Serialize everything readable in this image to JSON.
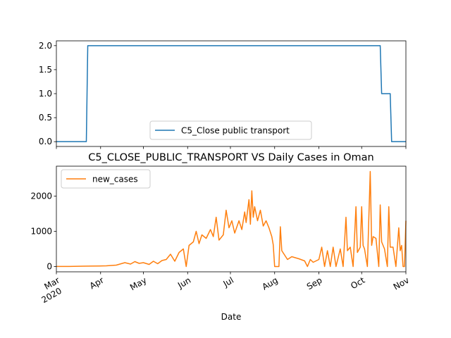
{
  "chart_data": [
    {
      "type": "line",
      "x_type": "date",
      "series": [
        {
          "name": "C5_Close public transport",
          "color": "#1f77b4",
          "points": [
            [
              "2020-03-01",
              0
            ],
            [
              "2020-03-22",
              0
            ],
            [
              "2020-03-23",
              2
            ],
            [
              "2020-10-14",
              2
            ],
            [
              "2020-10-15",
              1
            ],
            [
              "2020-10-21",
              1
            ],
            [
              "2020-10-22",
              0
            ],
            [
              "2020-11-01",
              0
            ]
          ]
        }
      ],
      "ylim": [
        -0.1,
        2.1
      ],
      "yticks": [
        "0.0",
        "0.5",
        "1.0",
        "1.5",
        "2.0"
      ],
      "legend": "bottom-center",
      "grid": false
    },
    {
      "type": "line",
      "x_type": "date",
      "title": "C5_CLOSE_PUBLIC_TRANSPORT VS Daily Cases in Oman",
      "xlabel": "Date",
      "series": [
        {
          "name": "new_cases",
          "color": "#ff7f0e",
          "points": [
            [
              "2020-03-01",
              2
            ],
            [
              "2020-03-10",
              3
            ],
            [
              "2020-03-20",
              10
            ],
            [
              "2020-03-31",
              15
            ],
            [
              "2020-04-05",
              20
            ],
            [
              "2020-04-12",
              40
            ],
            [
              "2020-04-18",
              110
            ],
            [
              "2020-04-22",
              70
            ],
            [
              "2020-04-25",
              140
            ],
            [
              "2020-04-28",
              90
            ],
            [
              "2020-05-01",
              110
            ],
            [
              "2020-05-05",
              60
            ],
            [
              "2020-05-08",
              150
            ],
            [
              "2020-05-11",
              80
            ],
            [
              "2020-05-14",
              170
            ],
            [
              "2020-05-17",
              200
            ],
            [
              "2020-05-20",
              350
            ],
            [
              "2020-05-23",
              150
            ],
            [
              "2020-05-26",
              400
            ],
            [
              "2020-05-29",
              500
            ],
            [
              "2020-05-31",
              0
            ],
            [
              "2020-06-02",
              600
            ],
            [
              "2020-06-05",
              700
            ],
            [
              "2020-06-07",
              1000
            ],
            [
              "2020-06-09",
              650
            ],
            [
              "2020-06-11",
              900
            ],
            [
              "2020-06-14",
              800
            ],
            [
              "2020-06-17",
              1050
            ],
            [
              "2020-06-19",
              850
            ],
            [
              "2020-06-21",
              1400
            ],
            [
              "2020-06-23",
              750
            ],
            [
              "2020-06-26",
              900
            ],
            [
              "2020-06-28",
              1600
            ],
            [
              "2020-06-30",
              1100
            ],
            [
              "2020-07-02",
              1300
            ],
            [
              "2020-07-04",
              950
            ],
            [
              "2020-07-07",
              1300
            ],
            [
              "2020-07-09",
              1050
            ],
            [
              "2020-07-11",
              1550
            ],
            [
              "2020-07-12",
              1250
            ],
            [
              "2020-07-14",
              1900
            ],
            [
              "2020-07-15",
              1200
            ],
            [
              "2020-07-16",
              2150
            ],
            [
              "2020-07-17",
              1400
            ],
            [
              "2020-07-18",
              1700
            ],
            [
              "2020-07-20",
              1300
            ],
            [
              "2020-07-22",
              1600
            ],
            [
              "2020-07-24",
              1150
            ],
            [
              "2020-07-26",
              1300
            ],
            [
              "2020-07-28",
              1100
            ],
            [
              "2020-07-30",
              850
            ],
            [
              "2020-07-31",
              620
            ],
            [
              "2020-08-01",
              0
            ],
            [
              "2020-08-04",
              0
            ],
            [
              "2020-08-05",
              1130
            ],
            [
              "2020-08-06",
              450
            ],
            [
              "2020-08-10",
              200
            ],
            [
              "2020-08-13",
              280
            ],
            [
              "2020-08-18",
              220
            ],
            [
              "2020-08-22",
              160
            ],
            [
              "2020-08-24",
              0
            ],
            [
              "2020-08-26",
              200
            ],
            [
              "2020-08-28",
              120
            ],
            [
              "2020-09-01",
              200
            ],
            [
              "2020-09-03",
              550
            ],
            [
              "2020-09-05",
              0
            ],
            [
              "2020-09-07",
              450
            ],
            [
              "2020-09-09",
              0
            ],
            [
              "2020-09-11",
              550
            ],
            [
              "2020-09-13",
              0
            ],
            [
              "2020-09-16",
              500
            ],
            [
              "2020-09-18",
              0
            ],
            [
              "2020-09-20",
              1400
            ],
            [
              "2020-09-21",
              450
            ],
            [
              "2020-09-23",
              550
            ],
            [
              "2020-09-25",
              0
            ],
            [
              "2020-09-27",
              1700
            ],
            [
              "2020-09-28",
              400
            ],
            [
              "2020-09-30",
              550
            ],
            [
              "2020-10-01",
              1700
            ],
            [
              "2020-10-02",
              600
            ],
            [
              "2020-10-03",
              500
            ],
            [
              "2020-10-05",
              0
            ],
            [
              "2020-10-07",
              2700
            ],
            [
              "2020-10-08",
              600
            ],
            [
              "2020-10-09",
              850
            ],
            [
              "2020-10-11",
              800
            ],
            [
              "2020-10-13",
              0
            ],
            [
              "2020-10-14",
              1750
            ],
            [
              "2020-10-15",
              700
            ],
            [
              "2020-10-17",
              500
            ],
            [
              "2020-10-19",
              0
            ],
            [
              "2020-10-20",
              1700
            ],
            [
              "2020-10-21",
              550
            ],
            [
              "2020-10-23",
              550
            ],
            [
              "2020-10-25",
              0
            ],
            [
              "2020-10-27",
              1100
            ],
            [
              "2020-10-28",
              450
            ],
            [
              "2020-10-29",
              600
            ],
            [
              "2020-10-30",
              0
            ],
            [
              "2020-10-31",
              0
            ],
            [
              "2020-11-01",
              1300
            ]
          ]
        }
      ],
      "ylim": [
        -150,
        2850
      ],
      "yticks": [
        "0",
        "1000",
        "2000"
      ],
      "legend": "top-left",
      "grid": false
    }
  ],
  "x_axis": {
    "start": "2020-03-01",
    "end": "2020-11-01",
    "ticks": [
      {
        "date": "2020-03-01",
        "label": "Mar",
        "sublabel": "2020"
      },
      {
        "date": "2020-04-01",
        "label": "Apr"
      },
      {
        "date": "2020-05-01",
        "label": "May"
      },
      {
        "date": "2020-06-01",
        "label": "Jun"
      },
      {
        "date": "2020-07-01",
        "label": "Jul"
      },
      {
        "date": "2020-08-01",
        "label": "Aug"
      },
      {
        "date": "2020-09-01",
        "label": "Sep"
      },
      {
        "date": "2020-10-01",
        "label": "Oct"
      },
      {
        "date": "2020-11-01",
        "label": "Nov"
      }
    ]
  }
}
